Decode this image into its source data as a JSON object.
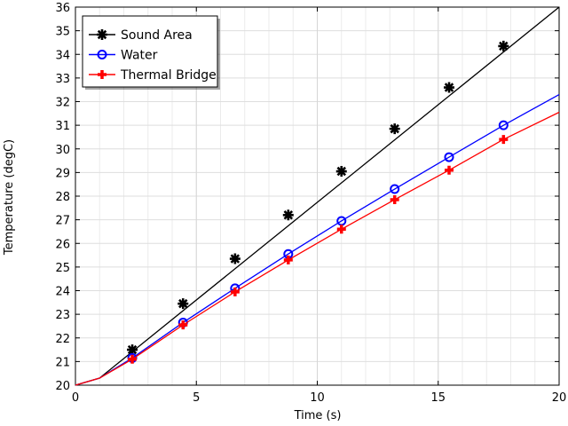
{
  "chart_data": {
    "type": "line",
    "title": "",
    "xlabel": "Time (s)",
    "ylabel": "Temperature (degC)",
    "xlim": [
      0,
      20
    ],
    "ylim": [
      20,
      36
    ],
    "xticks": [
      0,
      5,
      10,
      15,
      20
    ],
    "yticks": [
      20,
      21,
      22,
      23,
      24,
      25,
      26,
      27,
      28,
      29,
      30,
      31,
      32,
      33,
      34,
      35,
      36
    ],
    "grid": true,
    "legend": {
      "position": "top-left"
    },
    "series": [
      {
        "name": "Sound Area",
        "color": "#000000",
        "marker": "asterisk",
        "line_x": [
          0,
          1,
          20
        ],
        "line_y": [
          20.0,
          20.3,
          36.0
        ],
        "marker_x": [
          2.35,
          4.45,
          6.6,
          8.8,
          11.0,
          13.2,
          15.45,
          17.7
        ],
        "marker_y": [
          21.5,
          23.45,
          25.35,
          27.2,
          29.05,
          30.85,
          32.6,
          34.35
        ]
      },
      {
        "name": "Water",
        "color": "#0000ff",
        "marker": "circle",
        "line_x": [
          0,
          1,
          2.35,
          4.45,
          6.6,
          8.8,
          11.0,
          13.2,
          15.45,
          17.7,
          20
        ],
        "line_y": [
          20.0,
          20.3,
          21.15,
          22.65,
          24.1,
          25.55,
          26.95,
          28.3,
          29.65,
          31.0,
          32.3
        ],
        "marker_x": [
          2.35,
          4.45,
          6.6,
          8.8,
          11.0,
          13.2,
          15.45,
          17.7
        ],
        "marker_y": [
          21.15,
          22.65,
          24.1,
          25.55,
          26.95,
          28.3,
          29.65,
          31.0
        ]
      },
      {
        "name": "Thermal Bridge",
        "color": "#ff0000",
        "marker": "plus",
        "line_x": [
          0,
          1,
          2.35,
          4.45,
          6.6,
          8.8,
          11.0,
          13.2,
          15.45,
          17.7,
          20
        ],
        "line_y": [
          20.0,
          20.3,
          21.1,
          22.55,
          23.95,
          25.3,
          26.6,
          27.85,
          29.1,
          30.4,
          31.55
        ],
        "marker_x": [
          2.35,
          4.45,
          6.6,
          8.8,
          11.0,
          13.2,
          15.45,
          17.7
        ],
        "marker_y": [
          21.1,
          22.55,
          23.95,
          25.3,
          26.6,
          27.85,
          29.1,
          30.4
        ]
      }
    ]
  }
}
